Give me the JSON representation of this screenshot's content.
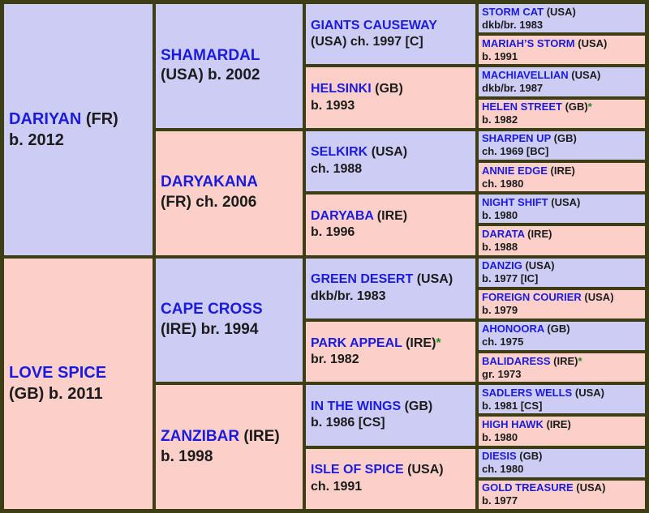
{
  "colors": {
    "frame": "#3e3e15",
    "sire_bg": "#cdccf5",
    "dam_bg": "#fcd0c9",
    "name_blue": "#1b1be0",
    "text_black": "#1b1b1b",
    "star_green": "#1f8c1f"
  },
  "pedigree": {
    "cells": [
      {
        "name": "DARIYAN",
        "after": "(FR)",
        "line2": "b. 2012",
        "sex": "sire",
        "generation": 1
      },
      {
        "name": "LOVE SPICE",
        "after": "",
        "line2": "(GB) b. 2011",
        "sex": "dam",
        "generation": 1
      },
      {
        "name": "SHAMARDAL",
        "after": "",
        "line2": "(USA) b. 2002",
        "sex": "sire",
        "generation": 2
      },
      {
        "name": "DARYAKANA",
        "after": "",
        "line2": "(FR) ch. 2006",
        "sex": "dam",
        "generation": 2
      },
      {
        "name": "CAPE CROSS",
        "after": "",
        "line2": "(IRE) br. 1994",
        "sex": "sire",
        "generation": 2
      },
      {
        "name": "ZANZIBAR",
        "after": "(IRE)",
        "line2": "b. 1998",
        "sex": "dam",
        "generation": 2
      },
      {
        "name": "GIANTS CAUSEWAY",
        "after": "",
        "line2": "(USA) ch. 1997 [C]",
        "sex": "sire",
        "generation": 3
      },
      {
        "name": "HELSINKI",
        "after": "(GB)",
        "line2": "b. 1993",
        "sex": "dam",
        "generation": 3
      },
      {
        "name": "SELKIRK",
        "after": "(USA)",
        "line2": "ch. 1988",
        "sex": "sire",
        "generation": 3
      },
      {
        "name": "DARYABA",
        "after": "(IRE)",
        "line2": "b. 1996",
        "sex": "dam",
        "generation": 3
      },
      {
        "name": "GREEN DESERT",
        "after": "(USA)",
        "line2": "dkb/br. 1983",
        "sex": "sire",
        "generation": 3
      },
      {
        "name": "PARK APPEAL",
        "after": "(IRE)",
        "star": "*",
        "line2": "br. 1982",
        "sex": "dam",
        "generation": 3
      },
      {
        "name": "IN THE WINGS",
        "after": "(GB)",
        "line2": "b. 1986 [CS]",
        "sex": "sire",
        "generation": 3
      },
      {
        "name": "ISLE OF SPICE",
        "after": "(USA)",
        "line2": "ch. 1991",
        "sex": "dam",
        "generation": 3
      },
      {
        "name": "STORM CAT",
        "after": "(USA)",
        "line2": "dkb/br. 1983",
        "sex": "sire",
        "generation": 4
      },
      {
        "name": "MARIAH’S STORM",
        "after": "(USA)",
        "line2": "b. 1991",
        "sex": "dam",
        "generation": 4
      },
      {
        "name": "MACHIAVELLIAN",
        "after": "(USA)",
        "line2": "dkb/br. 1987",
        "sex": "sire",
        "generation": 4
      },
      {
        "name": "HELEN STREET",
        "after": "(GB)",
        "star": "*",
        "line2": "b. 1982",
        "sex": "dam",
        "generation": 4
      },
      {
        "name": "SHARPEN UP",
        "after": "(GB)",
        "line2": "ch. 1969 [BC]",
        "sex": "sire",
        "generation": 4
      },
      {
        "name": "ANNIE EDGE",
        "after": "(IRE)",
        "line2": "ch. 1980",
        "sex": "dam",
        "generation": 4
      },
      {
        "name": "NIGHT SHIFT",
        "after": "(USA)",
        "line2": "b. 1980",
        "sex": "sire",
        "generation": 4
      },
      {
        "name": "DARATA",
        "after": "(IRE)",
        "line2": "b. 1988",
        "sex": "dam",
        "generation": 4
      },
      {
        "name": "DANZIG",
        "after": "(USA)",
        "line2": "b. 1977 [IC]",
        "sex": "sire",
        "generation": 4
      },
      {
        "name": "FOREIGN COURIER",
        "after": "(USA)",
        "line2": "b. 1979",
        "sex": "dam",
        "generation": 4
      },
      {
        "name": "AHONOORA",
        "after": "(GB)",
        "line2": "ch. 1975",
        "sex": "sire",
        "generation": 4
      },
      {
        "name": "BALIDARESS",
        "after": "(IRE)",
        "star": "*",
        "line2": "gr. 1973",
        "sex": "dam",
        "generation": 4
      },
      {
        "name": "SADLERS WELLS",
        "after": "(USA)",
        "line2": "b. 1981 [CS]",
        "sex": "sire",
        "generation": 4
      },
      {
        "name": "HIGH HAWK",
        "after": "(IRE)",
        "line2": "b. 1980",
        "sex": "dam",
        "generation": 4
      },
      {
        "name": "DIESIS",
        "after": "(GB)",
        "line2": "ch. 1980",
        "sex": "sire",
        "generation": 4
      },
      {
        "name": "GOLD TREASURE",
        "after": "(USA)",
        "line2": "b. 1977",
        "sex": "dam",
        "generation": 4
      }
    ]
  }
}
